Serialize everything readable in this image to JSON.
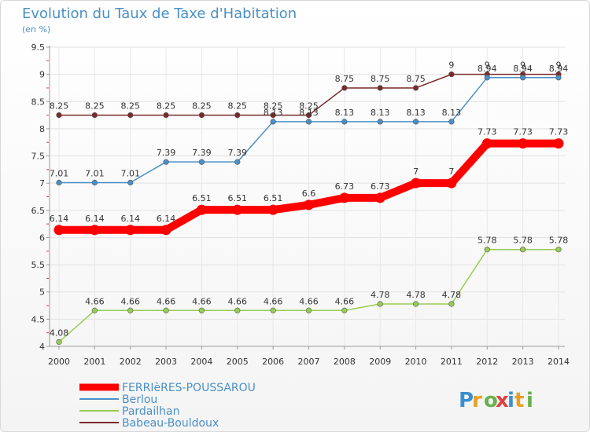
{
  "chart_data": {
    "type": "line",
    "title": "Evolution du Taux de Taxe d'Habitation",
    "subtitle": "(en %)",
    "xlabel": "",
    "ylabel": "",
    "categories": [
      "2000",
      "2001",
      "2002",
      "2003",
      "2004",
      "2005",
      "2006",
      "2007",
      "2008",
      "2009",
      "2010",
      "2011",
      "2012",
      "2013",
      "2014"
    ],
    "ylim": [
      4,
      9.5
    ],
    "yticks": [
      "4",
      "4.5",
      "5",
      "5.5",
      "6",
      "6.5",
      "7",
      "7.5",
      "8",
      "8.5",
      "9",
      "9.5"
    ],
    "grid": true,
    "series": [
      {
        "name": "FERRIèRES-POUSSAROU",
        "color": "#ff0000",
        "values": [
          6.14,
          6.14,
          6.14,
          6.14,
          6.51,
          6.51,
          6.51,
          6.6,
          6.73,
          6.73,
          7,
          7,
          7.73,
          7.73,
          7.73
        ],
        "labels": [
          "6.14",
          "6.14",
          "6.14",
          "6.14",
          "6.51",
          "6.51",
          "6.51",
          "6.6",
          "6.73",
          "6.73",
          "7",
          "7",
          "7.73",
          "7.73",
          "7.73"
        ]
      },
      {
        "name": "Berlou",
        "color": "#4a90c8",
        "values": [
          7.01,
          7.01,
          7.01,
          7.39,
          7.39,
          7.39,
          8.13,
          8.13,
          8.13,
          8.13,
          8.13,
          8.13,
          8.94,
          8.94,
          8.94
        ],
        "labels": [
          "7.01",
          "7.01",
          "7.01",
          "7.39",
          "7.39",
          "7.39",
          "8.13",
          "8.13",
          "8.13",
          "8.13",
          "8.13",
          "8.13",
          "8.94",
          "8.94",
          "8.94"
        ]
      },
      {
        "name": "Pardailhan",
        "color": "#99cc55",
        "values": [
          4.08,
          4.66,
          4.66,
          4.66,
          4.66,
          4.66,
          4.66,
          4.66,
          4.66,
          4.78,
          4.78,
          4.78,
          5.78,
          5.78,
          5.78
        ],
        "labels": [
          "4.08",
          "4.66",
          "4.66",
          "4.66",
          "4.66",
          "4.66",
          "4.66",
          "4.66",
          "4.66",
          "4.78",
          "4.78",
          "4.78",
          "5.78",
          "5.78",
          "5.78"
        ]
      },
      {
        "name": "Babeau-Bouldoux",
        "color": "#7a2a2a",
        "values": [
          8.25,
          8.25,
          8.25,
          8.25,
          8.25,
          8.25,
          8.25,
          8.25,
          8.75,
          8.75,
          8.75,
          9,
          9,
          9,
          9
        ],
        "labels": [
          "8.25",
          "8.25",
          "8.25",
          "8.25",
          "8.25",
          "8.25",
          "8.25",
          "8.25",
          "8.75",
          "8.75",
          "8.75",
          "9",
          "9",
          "9",
          "9"
        ]
      }
    ]
  },
  "logo": {
    "text": "Proxiti"
  }
}
